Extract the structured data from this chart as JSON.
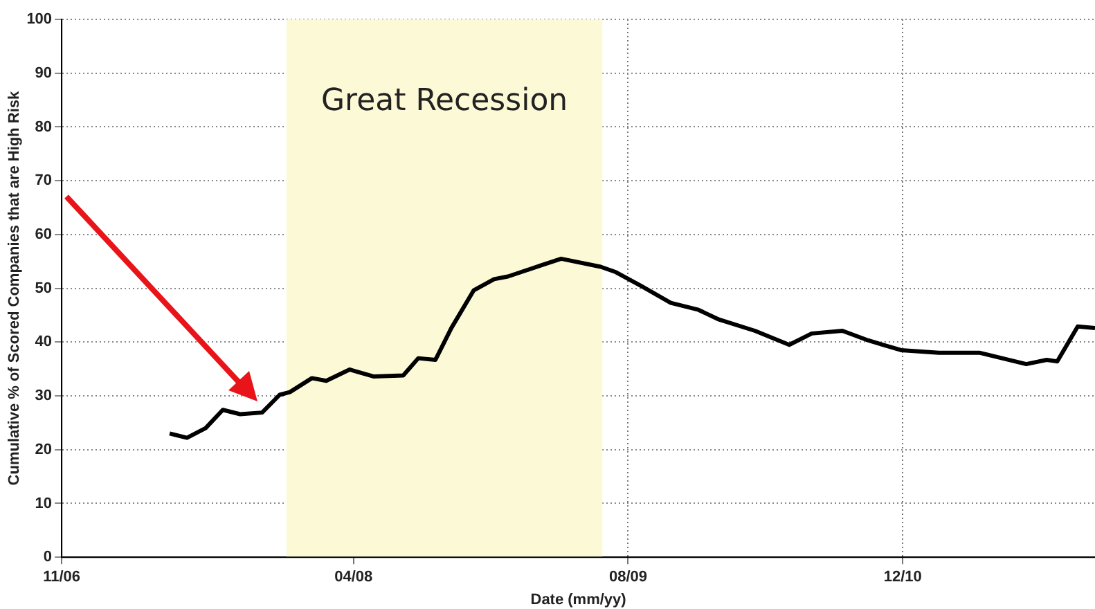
{
  "chart_data": {
    "type": "line",
    "xlabel": "Date (mm/yy)",
    "ylabel": "Cumulative % of Scored Companies that are High Risk",
    "x": [
      "2007-05-10",
      "2007-06-10",
      "2007-07-13",
      "2007-08-13",
      "2007-09-13",
      "2007-10-22",
      "2007-11-22",
      "2007-12-10",
      "2008-01-19",
      "2008-02-13",
      "2008-03-25",
      "2008-05-07",
      "2008-06-28",
      "2008-07-25",
      "2008-08-25",
      "2008-09-22",
      "2008-11-01",
      "2008-12-07",
      "2009-01-01",
      "2009-02-28",
      "2009-04-04",
      "2009-06-13",
      "2009-07-10",
      "2009-08-25",
      "2009-10-16",
      "2009-12-04",
      "2010-01-10",
      "2010-03-13",
      "2010-05-13",
      "2010-06-22",
      "2010-08-16",
      "2010-10-01",
      "2010-11-28",
      "2011-02-04",
      "2011-04-16",
      "2011-07-07",
      "2011-08-13",
      "2011-09-01",
      "2011-10-07",
      "2011-11-07"
    ],
    "series": [
      {
        "color": "#000000",
        "values": [
          23,
          22.2,
          24,
          27.4,
          26.6,
          26.9,
          30.2,
          30.7,
          33.3,
          32.8,
          34.9,
          33.6,
          33.8,
          37,
          36.7,
          42.6,
          49.6,
          51.7,
          52.2,
          54.3,
          55.5,
          54,
          53,
          50.4,
          47.3,
          46,
          44.2,
          42.1,
          39.5,
          41.6,
          42.1,
          40.3,
          38.5,
          38,
          38,
          35.9,
          36.7,
          36.4,
          42.9,
          42.6
        ]
      }
    ],
    "xlim": [
      "2006-11-01",
      "2011-11-07"
    ],
    "xticks": [
      {
        "value": "2006-11",
        "label": "11/06"
      },
      {
        "value": "2008-04",
        "label": "04/08"
      },
      {
        "value": "2009-08",
        "label": "08/09"
      },
      {
        "value": "2010-12",
        "label": "12/10"
      }
    ],
    "ylim": [
      0,
      100
    ],
    "yticks": [
      0,
      10,
      20,
      30,
      40,
      50,
      60,
      70,
      80,
      90,
      100
    ],
    "grid": true,
    "legend": false,
    "marker": "none",
    "line_style": "solid",
    "bands": [
      {
        "axis": "x",
        "from": "2007-12-04",
        "to": "2009-06-16",
        "label": "Great Recession",
        "color": "#fcfad6"
      }
    ]
  }
}
